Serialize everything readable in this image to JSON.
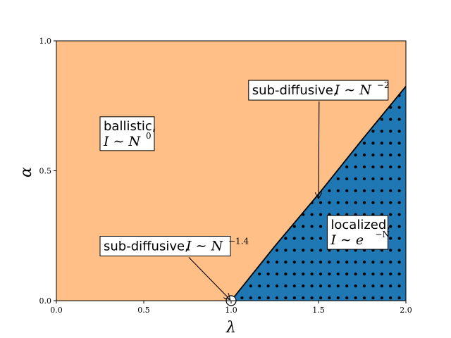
{
  "chart_data": {
    "type": "area",
    "xlabel": "λ",
    "ylabel": "α",
    "xlim": [
      0.0,
      2.0
    ],
    "ylim": [
      0.0,
      1.0
    ],
    "x_ticks": [
      "0.0",
      "0.5",
      "1.0",
      "1.5",
      "2.0"
    ],
    "y_ticks": [
      "0.0",
      "0.5",
      "1.0"
    ],
    "boundary": {
      "x": [
        1.0,
        1.25,
        1.5,
        1.75,
        2.0
      ],
      "y": [
        0.0,
        0.21,
        0.41,
        0.62,
        0.825
      ]
    },
    "regions": [
      {
        "id": "ballistic",
        "color": "#ffbf86"
      },
      {
        "id": "localized",
        "color": "#1f77b4",
        "hatch": "dots"
      }
    ],
    "annotations": [
      {
        "id": "ballistic",
        "line1": "ballistic,",
        "math": "I ∼ N",
        "sup": "0",
        "x": 0.25,
        "y": 0.64
      },
      {
        "id": "subdiff-2",
        "line1": "sub-diffusive, ",
        "math": "I ∼ N",
        "sup": "−2",
        "x": 1.1,
        "y": 0.81,
        "arrow_to": [
          1.5,
          0.395
        ]
      },
      {
        "id": "subdiff-14",
        "line1": "sub-diffusive, ",
        "math": "I ∼ N",
        "sup": "−1.4",
        "x": 0.25,
        "y": 0.21,
        "arrow_to": [
          1.0,
          0.0
        ]
      },
      {
        "id": "localized",
        "line1": "localized,",
        "math": "I ∼ e",
        "sup": "−N",
        "x": 1.55,
        "y": 0.26
      }
    ]
  }
}
